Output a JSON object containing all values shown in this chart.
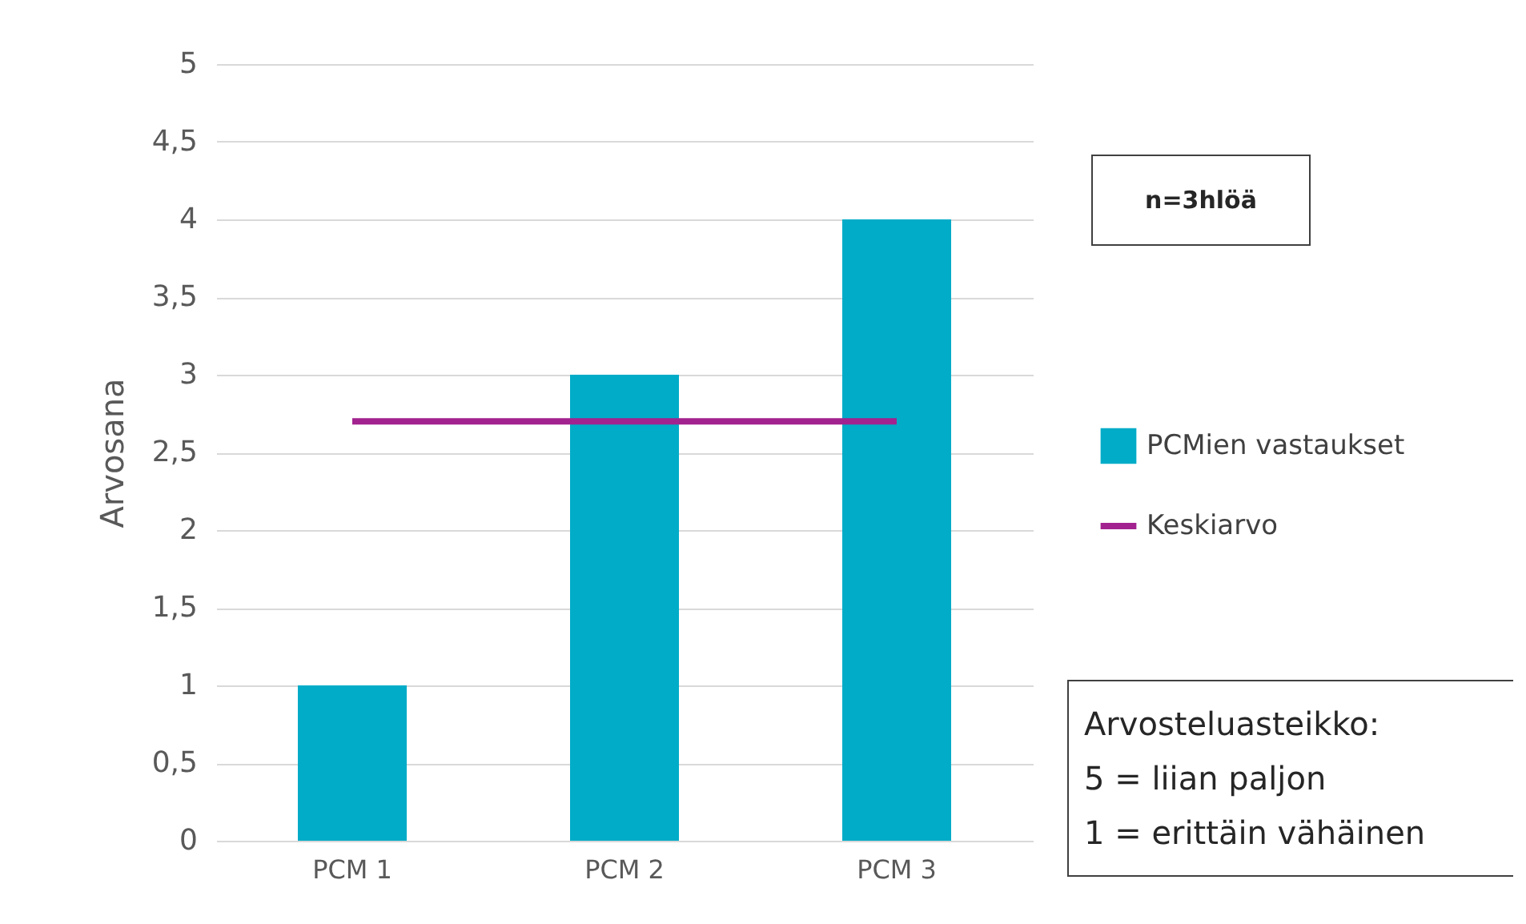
{
  "chart_data": {
    "type": "bar",
    "ylabel": "Arvosana",
    "categories": [
      "PCM 1",
      "PCM 2",
      "PCM 3"
    ],
    "series": [
      {
        "name": "PCMien vastaukset",
        "color": "#00acc8",
        "values": [
          1,
          3,
          4
        ]
      },
      {
        "name": "Keskiarvo",
        "type": "line",
        "color": "#a2238f",
        "values": [
          2.7,
          2.7,
          2.7
        ]
      }
    ],
    "ylim": [
      0,
      5
    ],
    "yticks": [
      0,
      {
        "value": 0.5,
        "label": "0,5"
      },
      1,
      {
        "value": 1.5,
        "label": "1,5"
      },
      2,
      {
        "value": 2.5,
        "label": "2,5"
      },
      3,
      {
        "value": 3.5,
        "label": "3,5"
      },
      4,
      {
        "value": 4.5,
        "label": "4,5"
      },
      5
    ],
    "grid": "y",
    "legend": "right",
    "annotations": [
      "n=3hlöä",
      "Arvosteluasteikko:",
      "5 = liian paljon",
      "1 = erittäin vähäinen"
    ]
  }
}
